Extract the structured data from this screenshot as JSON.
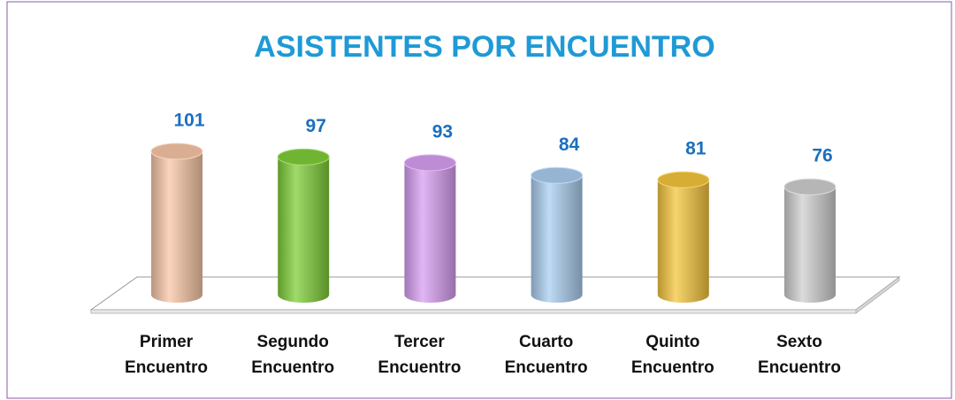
{
  "chart_data": {
    "type": "bar3d",
    "title": "ASISTENTES POR ENCUENTRO",
    "categories": [
      "Primer Encuentro",
      "Segundo Encuentro",
      "Tercer Encuentro",
      "Cuarto Encuentro",
      "Quinto Encuentro",
      "Sexto Encuentro"
    ],
    "values": [
      101,
      97,
      93,
      84,
      81,
      76
    ],
    "colors": [
      "#f8c6a6",
      "#7fce38",
      "#d89ef2",
      "#aacdf0",
      "#f4c53c",
      "#cfcfcf"
    ]
  }
}
